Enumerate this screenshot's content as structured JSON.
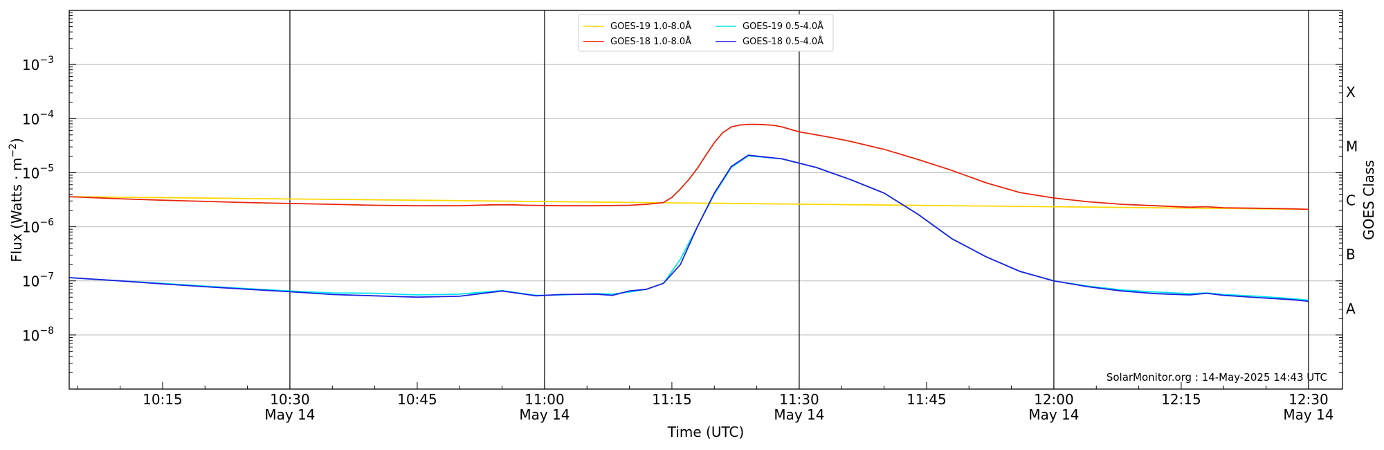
{
  "chart_data": {
    "type": "line",
    "title": "",
    "xlabel": "Time (UTC)",
    "ylabel": "Flux (Watts · m",
    "ylabel_sup": "−2",
    "ylabel_close": ")",
    "right_label": "GOES Class",
    "y_scale": "log",
    "ylim_exp": [
      -9,
      -2
    ],
    "xlim_min": [
      0,
      150
    ],
    "y_ticks": [
      {
        "exp": -8,
        "base": "10",
        "sup": "−8"
      },
      {
        "exp": -7,
        "base": "10",
        "sup": "−7"
      },
      {
        "exp": -6,
        "base": "10",
        "sup": "−6"
      },
      {
        "exp": -5,
        "base": "10",
        "sup": "−5"
      },
      {
        "exp": -4,
        "base": "10",
        "sup": "−4"
      },
      {
        "exp": -3,
        "base": "10",
        "sup": "−3"
      }
    ],
    "x_ticks": [
      {
        "t": 11,
        "label": "10:15",
        "date": ""
      },
      {
        "t": 26,
        "label": "10:30",
        "date": "May 14"
      },
      {
        "t": 41,
        "label": "10:45",
        "date": ""
      },
      {
        "t": 56,
        "label": "11:00",
        "date": "May 14"
      },
      {
        "t": 71,
        "label": "11:15",
        "date": ""
      },
      {
        "t": 86,
        "label": "11:30",
        "date": "May 14"
      },
      {
        "t": 101,
        "label": "11:45",
        "date": ""
      },
      {
        "t": 116,
        "label": "12:00",
        "date": "May 14"
      },
      {
        "t": 131,
        "label": "12:15",
        "date": ""
      },
      {
        "t": 146,
        "label": "12:30",
        "date": "May 14"
      }
    ],
    "vlines_t": [
      26,
      56,
      86,
      116,
      146
    ],
    "goes_classes": [
      {
        "label": "A",
        "exp": -7.5
      },
      {
        "label": "B",
        "exp": -6.5
      },
      {
        "label": "C",
        "exp": -5.5
      },
      {
        "label": "M",
        "exp": -4.5
      },
      {
        "label": "X",
        "exp": -3.5
      }
    ],
    "grid": true,
    "legend_position": "top-center",
    "annotation": "SolarMonitor.org : 14-May-2025 14:43 UTC",
    "series": [
      {
        "name": "GOES-19 1.0-8.0Å",
        "color": "#FFD700",
        "x": [
          0,
          146
        ],
        "y": [
          3.6e-06,
          2.1e-06
        ]
      },
      {
        "name": "GOES-19 0.5-4.0Å",
        "color": "#00E5EE",
        "x": [
          0,
          6,
          11,
          16,
          21,
          26,
          31,
          36,
          41,
          46,
          51,
          55,
          58,
          62,
          64,
          66,
          68,
          70,
          72,
          74,
          76,
          78,
          80,
          84,
          88,
          92,
          96,
          100,
          104,
          108,
          112,
          116,
          120,
          124,
          128,
          132,
          134,
          136,
          140,
          144,
          146
        ],
        "y": [
          1.15e-07,
          1e-07,
          9e-08,
          8e-08,
          7.2e-08,
          6.5e-08,
          6e-08,
          5.9e-08,
          5.5e-08,
          5.7e-08,
          6.6e-08,
          5.4e-08,
          5.5e-08,
          5.8e-08,
          5.7e-08,
          6.2e-08,
          7e-08,
          9e-08,
          2.5e-07,
          1e-06,
          4e-06,
          1.25e-05,
          2.05e-05,
          1.8e-05,
          1.25e-05,
          7.5e-06,
          4.2e-06,
          1.7e-06,
          6e-07,
          2.8e-07,
          1.5e-07,
          1e-07,
          8e-08,
          6.8e-08,
          6.2e-08,
          5.8e-08,
          6e-08,
          5.6e-08,
          5.2e-08,
          4.7e-08,
          4.4e-08
        ]
      },
      {
        "name": "GOES-18 1.0-8.0Å",
        "color": "#E8240C",
        "x": [
          0,
          6,
          11,
          16,
          21,
          26,
          31,
          36,
          41,
          46,
          50,
          52,
          54,
          58,
          62,
          66,
          68,
          70,
          71,
          72,
          73,
          74,
          75,
          76,
          77,
          78,
          79,
          80,
          81,
          82,
          83,
          84,
          85,
          86,
          88,
          90,
          92,
          96,
          100,
          104,
          108,
          112,
          116,
          120,
          124,
          128,
          132,
          134,
          136,
          140,
          144,
          146
        ],
        "y": [
          3.6e-06,
          3.3e-06,
          3.1e-06,
          2.95e-06,
          2.8e-06,
          2.7e-06,
          2.6e-06,
          2.5e-06,
          2.45e-06,
          2.45e-06,
          2.55e-06,
          2.55e-06,
          2.5e-06,
          2.45e-06,
          2.45e-06,
          2.5e-06,
          2.6e-06,
          2.8e-06,
          3.5e-06,
          5e-06,
          7.5e-06,
          1.2e-05,
          2.1e-05,
          3.6e-05,
          5.5e-05,
          7e-05,
          7.6e-05,
          7.8e-05,
          7.8e-05,
          7.7e-05,
          7.5e-05,
          7e-05,
          6.3e-05,
          5.7e-05,
          5e-05,
          4.4e-05,
          3.8e-05,
          2.7e-05,
          1.75e-05,
          1.1e-05,
          6.5e-06,
          4.3e-06,
          3.4e-06,
          2.9e-06,
          2.6e-06,
          2.45e-06,
          2.3e-06,
          2.35e-06,
          2.25e-06,
          2.2e-06,
          2.15e-06,
          2.1e-06
        ]
      },
      {
        "name": "GOES-18 0.5-4.0Å",
        "color": "#1F1FE0",
        "x": [
          0,
          6,
          11,
          16,
          21,
          26,
          31,
          36,
          41,
          46,
          51,
          55,
          58,
          62,
          64,
          66,
          68,
          70,
          72,
          74,
          76,
          78,
          80,
          84,
          88,
          92,
          96,
          100,
          104,
          108,
          112,
          116,
          120,
          124,
          128,
          132,
          134,
          136,
          140,
          144,
          146
        ],
        "y": [
          1.15e-07,
          1e-07,
          8.8e-08,
          7.8e-08,
          7e-08,
          6.3e-08,
          5.6e-08,
          5.3e-08,
          5e-08,
          5.2e-08,
          6.5e-08,
          5.3e-08,
          5.6e-08,
          5.7e-08,
          5.4e-08,
          6.5e-08,
          7e-08,
          9e-08,
          2e-07,
          1e-06,
          4.2e-06,
          1.3e-05,
          2.1e-05,
          1.8e-05,
          1.25e-05,
          7.5e-06,
          4.2e-06,
          1.7e-06,
          6e-07,
          2.8e-07,
          1.5e-07,
          1e-07,
          7.8e-08,
          6.5e-08,
          5.8e-08,
          5.5e-08,
          5.9e-08,
          5.4e-08,
          4.9e-08,
          4.5e-08,
          4.2e-08
        ]
      }
    ]
  }
}
